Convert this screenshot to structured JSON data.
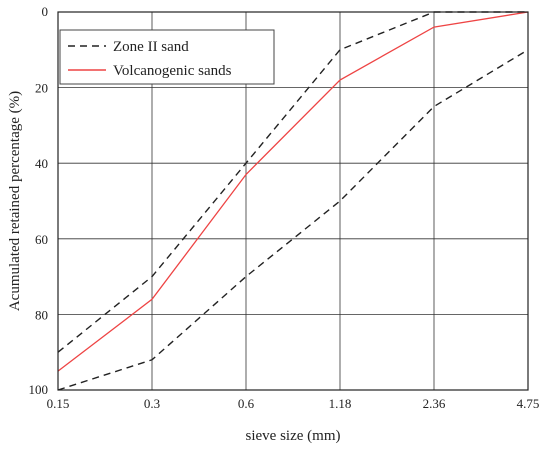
{
  "chart_data": {
    "type": "line",
    "x": [
      "0.15",
      "0.3",
      "0.6",
      "1.18",
      "2.36",
      "4.75"
    ],
    "xlabel": "sieve size (mm)",
    "ylabel": "Acumulated retained percentage (%)",
    "ylim": [
      0,
      100
    ],
    "y_inverted": true,
    "yticks": [
      0,
      20,
      40,
      60,
      80,
      100
    ],
    "grid": true,
    "legend_position": "top-left",
    "series": [
      {
        "name": "Zone II sand",
        "role": "upper_limit",
        "style": "dashed",
        "color": "#222222",
        "values": [
          90,
          70,
          40,
          10,
          0,
          0
        ]
      },
      {
        "name": "Zone II sand",
        "role": "lower_limit",
        "style": "dashed",
        "color": "#222222",
        "values": [
          100,
          92,
          70,
          50,
          25,
          10
        ]
      },
      {
        "name": "Volcanogenic sands",
        "style": "solid",
        "color": "#ee4444",
        "values": [
          95,
          76,
          43,
          18,
          4,
          0
        ]
      }
    ],
    "legend": [
      {
        "label": "Zone II sand",
        "style": "dashed",
        "color": "#222222"
      },
      {
        "label": "Volcanogenic sands",
        "style": "solid",
        "color": "#ee4444"
      }
    ]
  }
}
